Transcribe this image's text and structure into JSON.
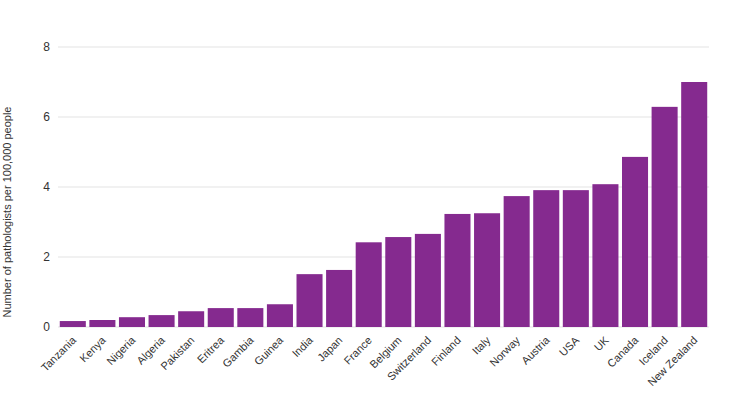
{
  "chart_data": {
    "type": "bar",
    "y_label": "Number of pathologists per 100,000 people",
    "categories": [
      "Tanzania",
      "Kenya",
      "Nigeria",
      "Algeria",
      "Pakistan",
      "Eritrea",
      "Gambia",
      "Guinea",
      "India",
      "Japan",
      "France",
      "Belgium",
      "Switzerland",
      "Finland",
      "Italy",
      "Norway",
      "Austria",
      "USA",
      "UK",
      "Canada",
      "Iceland",
      "New Zealand"
    ],
    "values": [
      0.17,
      0.2,
      0.28,
      0.34,
      0.45,
      0.54,
      0.54,
      0.65,
      1.51,
      1.63,
      2.42,
      2.57,
      2.66,
      3.23,
      3.25,
      3.74,
      3.91,
      3.91,
      4.08,
      4.86,
      6.29,
      7.0
    ],
    "color": "#852a8f",
    "ylim": [
      0,
      8
    ],
    "yticks": [
      0,
      2,
      4,
      6,
      8
    ],
    "grid": true
  }
}
